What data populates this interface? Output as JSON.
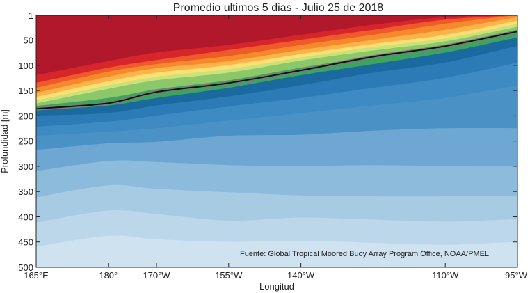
{
  "chart_data": {
    "type": "contour",
    "title": "Promedio ultimos 5 dias - Julio 25 de 2018",
    "xlabel": "Longitud",
    "ylabel": "Profundidad [m]",
    "xlim_deg_east": [
      165,
      265
    ],
    "ylim_m": [
      500,
      1
    ],
    "y_reversed": true,
    "x_ticks": [
      {
        "lon": 165,
        "label": "165°E"
      },
      {
        "lon": 180,
        "label": "180°"
      },
      {
        "lon": 190,
        "label": "170°W"
      },
      {
        "lon": 205,
        "label": "155°W"
      },
      {
        "lon": 220,
        "label": "140°W"
      },
      {
        "lon": 250,
        "label": "110°W"
      },
      {
        "lon": 265,
        "label": "95°W"
      }
    ],
    "y_ticks": [
      {
        "depth": 1,
        "label": "1"
      },
      {
        "depth": 50,
        "label": "50"
      },
      {
        "depth": 100,
        "label": "100"
      },
      {
        "depth": 150,
        "label": "150"
      },
      {
        "depth": 200,
        "label": "200"
      },
      {
        "depth": 250,
        "label": "250"
      },
      {
        "depth": 300,
        "label": "300"
      },
      {
        "depth": 350,
        "label": "350"
      },
      {
        "depth": 400,
        "label": "400"
      },
      {
        "depth": 450,
        "label": "450"
      },
      {
        "depth": 500,
        "label": "500"
      }
    ],
    "contour_lon": [
      165,
      180,
      190,
      205,
      220,
      235,
      250,
      265
    ],
    "bands": [
      {
        "color": "#b2182b",
        "top": [
          1,
          1,
          1,
          1,
          1,
          1,
          1,
          1
        ],
        "bottom": [
          120,
          92,
          75,
          60,
          40,
          20,
          5,
          1
        ]
      },
      {
        "color": "#d7262b",
        "top": [
          120,
          92,
          75,
          60,
          40,
          20,
          5,
          1
        ],
        "bottom": [
          135,
          105,
          90,
          70,
          50,
          30,
          10,
          1
        ]
      },
      {
        "color": "#ee5a2a",
        "top": [
          135,
          105,
          90,
          70,
          50,
          30,
          10,
          1
        ],
        "bottom": [
          145,
          113,
          98,
          82,
          60,
          40,
          18,
          1
        ]
      },
      {
        "color": "#f7892d",
        "top": [
          145,
          113,
          98,
          82,
          60,
          40,
          18,
          1
        ],
        "bottom": [
          155,
          123,
          106,
          92,
          70,
          50,
          30,
          5
        ]
      },
      {
        "color": "#fbb34a",
        "top": [
          155,
          123,
          106,
          92,
          70,
          50,
          30,
          5
        ],
        "bottom": [
          163,
          132,
          115,
          100,
          78,
          58,
          40,
          12
        ]
      },
      {
        "color": "#fde073",
        "top": [
          163,
          132,
          115,
          100,
          78,
          58,
          40,
          12
        ],
        "bottom": [
          170,
          140,
          123,
          108,
          85,
          64,
          47,
          18
        ]
      },
      {
        "color": "#c9e27a",
        "top": [
          170,
          140,
          123,
          108,
          85,
          64,
          47,
          18
        ],
        "bottom": [
          176,
          147,
          130,
          115,
          91,
          71,
          53,
          24
        ]
      },
      {
        "color": "#8cc769",
        "top": [
          176,
          147,
          130,
          115,
          91,
          71,
          53,
          24
        ],
        "bottom": [
          181,
          165,
          148,
          130,
          105,
          82,
          60,
          30
        ]
      },
      {
        "color": "#3fa360",
        "top": [
          181,
          165,
          148,
          130,
          105,
          82,
          60,
          30
        ],
        "bottom": [
          190,
          180,
          165,
          145,
          120,
          98,
          75,
          45
        ]
      },
      {
        "color": "#1a6aa0",
        "top": [
          190,
          180,
          165,
          145,
          120,
          98,
          75,
          45
        ],
        "bottom": [
          200,
          195,
          180,
          162,
          140,
          115,
          95,
          62
        ]
      },
      {
        "color": "#2c7bb6",
        "top": [
          200,
          195,
          180,
          162,
          140,
          115,
          95,
          62
        ],
        "bottom": [
          222,
          212,
          200,
          182,
          165,
          145,
          125,
          95
        ]
      },
      {
        "color": "#3d8bc2",
        "top": [
          222,
          212,
          200,
          182,
          165,
          145,
          125,
          95
        ],
        "bottom": [
          240,
          232,
          225,
          210,
          195,
          180,
          165,
          140
        ]
      },
      {
        "color": "#4a92c6",
        "top": [
          240,
          232,
          225,
          210,
          195,
          180,
          165,
          140
        ],
        "bottom": [
          268,
          255,
          252,
          240,
          238,
          230,
          225,
          225
        ]
      },
      {
        "color": "#6ea8d2",
        "top": [
          268,
          255,
          252,
          240,
          238,
          230,
          225,
          225
        ],
        "bottom": [
          310,
          290,
          292,
          298,
          300,
          298,
          300,
          300
        ]
      },
      {
        "color": "#8cbbdc",
        "top": [
          310,
          290,
          292,
          298,
          300,
          298,
          300,
          300
        ],
        "bottom": [
          362,
          338,
          345,
          352,
          358,
          360,
          360,
          358
        ]
      },
      {
        "color": "#a8cbe4",
        "top": [
          362,
          338,
          345,
          352,
          358,
          360,
          360,
          358
        ],
        "bottom": [
          412,
          388,
          395,
          408,
          402,
          406,
          410,
          405
        ]
      },
      {
        "color": "#bdd7ea",
        "top": [
          412,
          388,
          395,
          408,
          402,
          406,
          410,
          405
        ],
        "bottom": [
          460,
          438,
          445,
          450,
          448,
          452,
          456,
          450
        ]
      },
      {
        "color": "#cfe2f0",
        "top": [
          460,
          438,
          445,
          450,
          448,
          452,
          456,
          450
        ],
        "bottom": [
          500,
          500,
          500,
          500,
          500,
          500,
          500,
          500
        ]
      }
    ],
    "black_line": {
      "lon": [
        165,
        180,
        190,
        205,
        220,
        235,
        250,
        265
      ],
      "depth": [
        186,
        175,
        153,
        135,
        110,
        83,
        62,
        33
      ]
    },
    "annotation": "Fuente: Global Tropical Moored Buoy Array Program Office, NOAA/PMEL",
    "colors": {
      "axis": "#222222",
      "line_outer": "#7a7a7a",
      "line_inner": "#111111"
    }
  }
}
